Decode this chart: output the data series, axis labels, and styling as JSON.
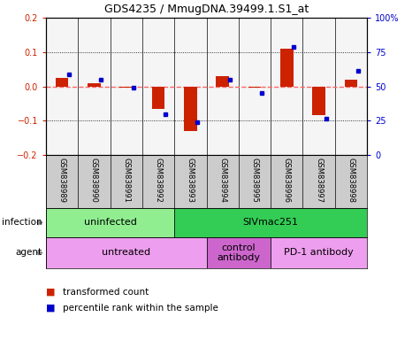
{
  "title": "GDS4235 / MmugDNA.39499.1.S1_at",
  "samples": [
    "GSM838989",
    "GSM838990",
    "GSM838991",
    "GSM838992",
    "GSM838993",
    "GSM838994",
    "GSM838995",
    "GSM838996",
    "GSM838997",
    "GSM838998"
  ],
  "red_values": [
    0.025,
    0.01,
    -0.005,
    -0.065,
    -0.13,
    0.03,
    -0.005,
    0.11,
    -0.085,
    0.02
  ],
  "blue_values": [
    0.035,
    0.02,
    -0.005,
    -0.08,
    -0.105,
    0.02,
    -0.02,
    0.115,
    -0.095,
    0.045
  ],
  "ylim": [
    -0.2,
    0.2
  ],
  "yticks_left": [
    -0.2,
    -0.1,
    0.0,
    0.1,
    0.2
  ],
  "yticks_right": [
    0,
    25,
    50,
    75,
    100
  ],
  "right_tick_pos": [
    -0.2,
    -0.1,
    0.0,
    0.1,
    0.2
  ],
  "infection_groups": [
    {
      "label": "uninfected",
      "start": 0,
      "end": 4,
      "color": "#90EE90"
    },
    {
      "label": "SIVmac251",
      "start": 4,
      "end": 10,
      "color": "#33CC55"
    }
  ],
  "agent_groups": [
    {
      "label": "untreated",
      "start": 0,
      "end": 5,
      "color": "#EE9EEE"
    },
    {
      "label": "control\nantibody",
      "start": 5,
      "end": 7,
      "color": "#CC66CC"
    },
    {
      "label": "PD-1 antibody",
      "start": 7,
      "end": 10,
      "color": "#EE9EEE"
    }
  ],
  "red_color": "#CC2200",
  "blue_color": "#0000CC",
  "hline_color": "#FF6666",
  "label_bg": "#CCCCCC",
  "bar_bg": "#F5F5F5"
}
